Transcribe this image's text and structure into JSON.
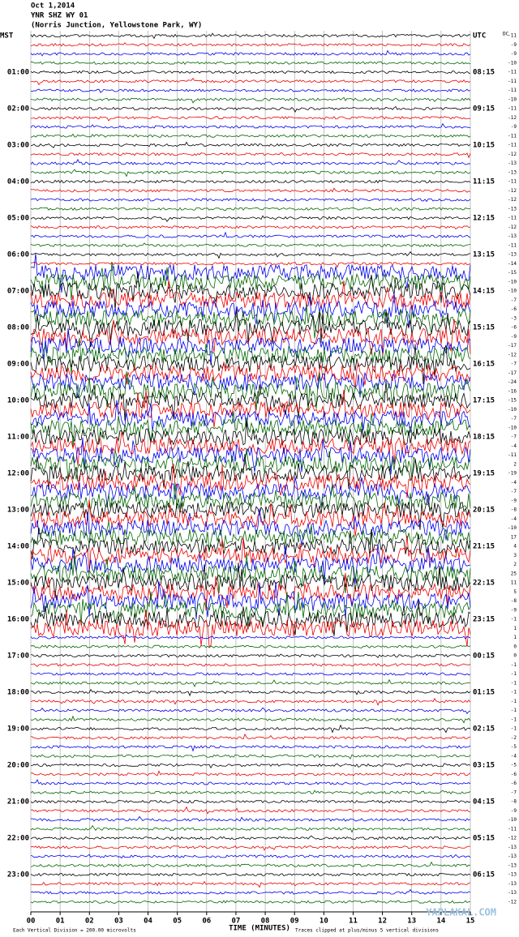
{
  "header": {
    "date": "Oct 1,2014",
    "station": "YNR SHZ WY 01",
    "location": "(Norris Junction, Yellowstone Park, WY)"
  },
  "left_labels": [
    "MST",
    "01:00",
    "02:00",
    "03:00",
    "04:00",
    "05:00",
    "06:00",
    "07:00",
    "08:00",
    "09:00",
    "10:00",
    "11:00",
    "12:00",
    "13:00",
    "14:00",
    "15:00",
    "16:00",
    "17:00",
    "18:00",
    "19:00",
    "20:00",
    "21:00",
    "22:00",
    "23:00"
  ],
  "right_labels": [
    "UTC",
    "08:15",
    "09:15",
    "10:15",
    "11:15",
    "12:15",
    "13:15",
    "14:15",
    "15:15",
    "16:15",
    "17:15",
    "18:15",
    "19:15",
    "20:15",
    "21:15",
    "22:15",
    "23:15",
    "00:15",
    "01:15",
    "02:15",
    "03:15",
    "04:15",
    "05:15",
    "06:15"
  ],
  "dc_label": "DC",
  "dc_values": [
    "-11",
    "-9",
    "-9",
    "-10",
    "-11",
    "-11",
    "-11",
    "-10",
    "-11",
    "-12",
    "-9",
    "-11",
    "-11",
    "-12",
    "-13",
    "-13",
    "-11",
    "-12",
    "-12",
    "-13",
    "-11",
    "-12",
    "-13",
    "-11",
    "-13",
    "-14",
    "-15",
    "-10",
    "-10",
    "-7",
    "-6",
    "-3",
    "-6",
    "-9",
    "-17",
    "-12",
    "-7",
    "-17",
    "-24",
    "-16",
    "-15",
    "-10",
    "-7",
    "-10",
    "-7",
    "-4",
    "-11",
    "2",
    "-19",
    "-4",
    "-7",
    "-9",
    "-8",
    "-4",
    "-10",
    "17",
    "4",
    "3",
    "2",
    "25",
    "11",
    "5",
    "-8",
    "-9",
    "-1",
    "1",
    "1",
    "0",
    "0",
    "-1",
    "-1",
    "-1",
    "-1",
    "-1",
    "-1",
    "-1",
    "-1",
    "-2",
    "-5",
    "-4",
    "-5",
    "-6",
    "-6",
    "-7",
    "-8",
    "-9",
    "-10",
    "-11",
    "-12",
    "-13",
    "-13",
    "-13",
    "-13",
    "-13",
    "-13",
    "-12"
  ],
  "x_axis": {
    "ticks": [
      "00",
      "01",
      "02",
      "03",
      "04",
      "05",
      "06",
      "07",
      "08",
      "09",
      "10",
      "11",
      "12",
      "13",
      "14",
      "15"
    ],
    "label": "TIME (MINUTES)"
  },
  "footer": {
    "scale": "Each Vertical Division = 200.00 microvolts",
    "clip": "Traces clipped at plus/minus 5 vertical divisions"
  },
  "watermark": "YAPLAKAL.COM"
}
